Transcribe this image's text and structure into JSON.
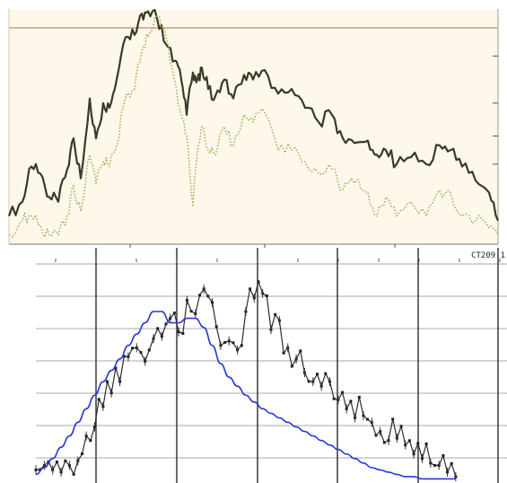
{
  "chart_data": [
    {
      "type": "line",
      "title": "",
      "xlabel": "",
      "ylabel": "",
      "xlim": [
        0,
        545
      ],
      "ylim": [
        0,
        100
      ],
      "grid": false,
      "background": "#fdf8e9",
      "reference_line": {
        "y": 92,
        "color": "#d7b2a8"
      },
      "annotation": "CT209 1",
      "x": [
        0,
        15,
        25,
        35,
        45,
        55,
        65,
        72,
        80,
        90,
        97,
        105,
        112,
        120,
        130,
        140,
        148,
        155,
        165,
        175,
        185,
        192,
        198,
        205,
        210,
        215,
        222,
        230,
        240,
        250,
        262,
        272,
        285,
        300,
        315,
        330,
        345,
        360,
        372,
        385,
        400,
        410,
        420,
        432,
        448,
        465,
        480,
        492,
        505,
        520,
        535,
        545
      ],
      "series": [
        {
          "color": "#3a3a28",
          "style": "solid",
          "values": [
            12,
            18,
            33,
            30,
            20,
            18,
            32,
            45,
            28,
            62,
            45,
            60,
            58,
            70,
            88,
            89,
            98,
            99,
            96,
            85,
            78,
            70,
            55,
            73,
            70,
            75,
            66,
            63,
            70,
            62,
            72,
            70,
            74,
            64,
            66,
            58,
            52,
            55,
            45,
            43,
            44,
            38,
            40,
            34,
            37,
            34,
            42,
            40,
            33,
            27,
            22,
            10
          ]
        },
        {
          "color": "#a8aa5c",
          "style": "dotted",
          "values": [
            4,
            10,
            12,
            8,
            4,
            4,
            12,
            25,
            14,
            38,
            26,
            35,
            33,
            42,
            63,
            66,
            82,
            88,
            97,
            88,
            69,
            55,
            46,
            16,
            40,
            50,
            40,
            38,
            50,
            42,
            55,
            52,
            56,
            40,
            40,
            35,
            30,
            32,
            23,
            26,
            22,
            12,
            20,
            12,
            18,
            12,
            23,
            22,
            12,
            10,
            7,
            4
          ]
        }
      ]
    },
    {
      "type": "line",
      "title": "",
      "xlabel": "",
      "ylabel": "",
      "xlim": [
        0,
        545
      ],
      "ylim": [
        0,
        100
      ],
      "grid": true,
      "background": "#ffffff",
      "x": [
        0,
        10,
        20,
        30,
        40,
        50,
        60,
        70,
        80,
        90,
        100,
        110,
        120,
        130,
        140,
        150,
        160,
        170,
        180,
        190,
        200,
        210,
        220,
        230,
        240,
        250,
        260,
        270,
        280,
        290,
        300,
        310,
        320,
        330,
        340,
        350,
        360,
        370,
        380,
        390,
        400,
        410,
        420,
        430,
        440,
        450,
        460,
        470,
        480,
        490,
        500
      ],
      "series": [
        {
          "color": "#2b2b35",
          "style": "jagged-with-markers",
          "values": [
            5,
            7,
            5,
            4,
            7,
            9,
            20,
            24,
            33,
            39,
            44,
            55,
            59,
            53,
            63,
            64,
            72,
            66,
            80,
            74,
            85,
            79,
            60,
            62,
            58,
            75,
            81,
            83,
            67,
            71,
            59,
            54,
            48,
            44,
            42,
            44,
            36,
            32,
            28,
            29,
            26,
            22,
            18,
            19,
            16,
            12,
            10,
            8,
            7,
            4,
            2
          ]
        },
        {
          "color": "#2a38d0",
          "style": "smooth",
          "values": [
            3,
            6,
            10,
            15,
            20,
            26,
            32,
            38,
            44,
            49,
            54,
            60,
            65,
            70,
            75,
            75,
            70,
            70,
            72,
            72,
            68,
            60,
            52,
            46,
            42,
            38,
            35,
            32,
            30,
            28,
            26,
            24,
            22,
            20,
            18,
            16,
            14,
            12,
            10,
            8,
            6,
            5,
            4,
            3,
            2,
            2,
            1,
            1,
            1,
            1,
            1
          ]
        }
      ]
    }
  ]
}
